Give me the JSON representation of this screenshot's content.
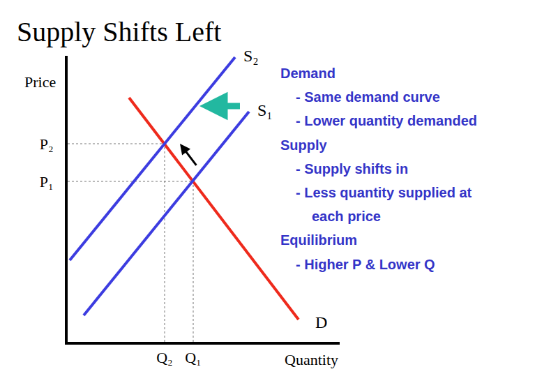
{
  "chart_data": {
    "type": "line",
    "title": "Supply Shifts Left",
    "x_label": "Quantity",
    "y_label": "Price",
    "xlim": [
      0,
      390
    ],
    "ylim": [
      0,
      410
    ],
    "xticks": [
      {
        "value": 139,
        "label": "Q₂"
      },
      {
        "value": 180,
        "label": "Q₁"
      }
    ],
    "yticks": [
      {
        "value": 230,
        "label": "P₁"
      },
      {
        "value": 284,
        "label": "P₂"
      }
    ],
    "grid": false,
    "series": [
      {
        "name": "D",
        "color": "#ee2a1c",
        "x": [
          88,
          331
        ],
        "values": [
          350,
          32
        ]
      },
      {
        "name": "S₁",
        "color": "#3c3ce0",
        "x": [
          23,
          260
        ],
        "values": [
          38,
          330
        ]
      },
      {
        "name": "S₂",
        "color": "#3c3ce0",
        "x": [
          3,
          240
        ],
        "values": [
          117,
          408
        ]
      }
    ],
    "equilibria": [
      {
        "x": 180,
        "y": 230
      },
      {
        "x": 139,
        "y": 284
      }
    ],
    "annotations": [
      {
        "heading": "Demand",
        "items": [
          "- Same demand curve",
          "- Lower quantity demanded"
        ]
      },
      {
        "heading": "Supply",
        "items": [
          "- Supply shifts in",
          "- Less quantity supplied at\neach price"
        ]
      },
      {
        "heading": "Equilibrium",
        "items": [
          "- Higher P & Lower Q"
        ]
      }
    ]
  }
}
